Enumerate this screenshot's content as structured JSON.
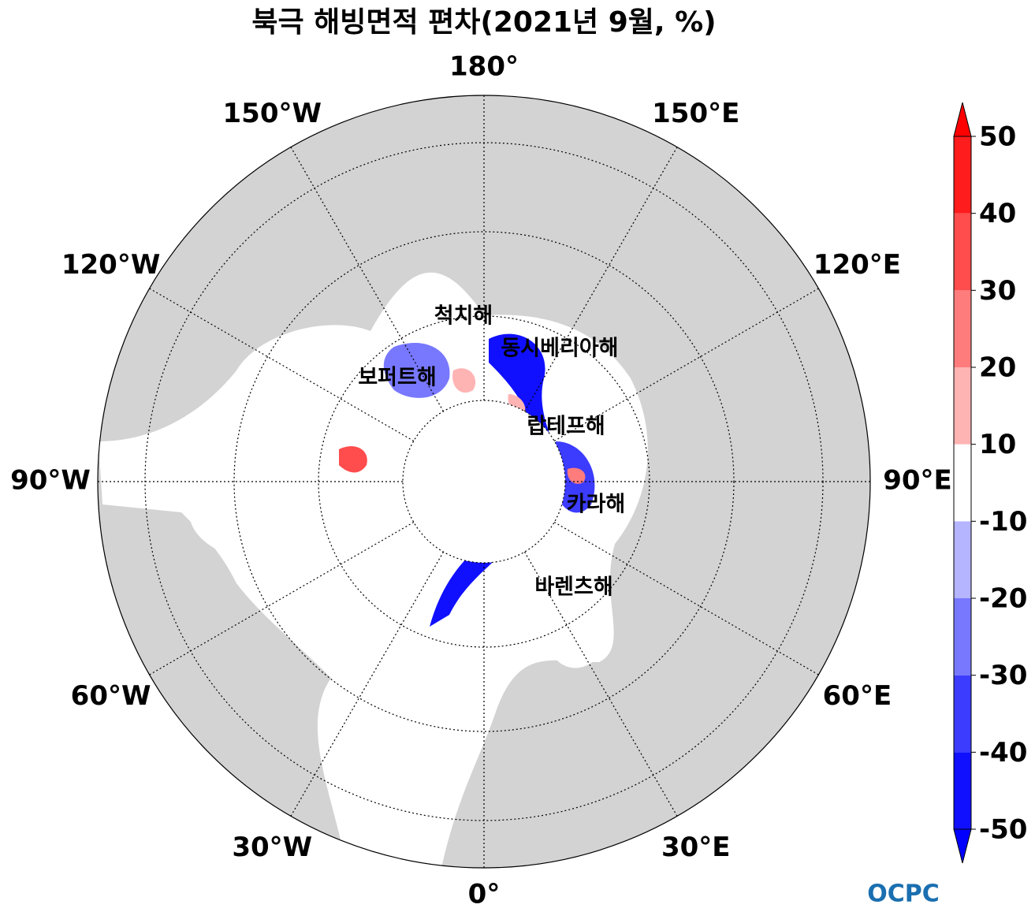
{
  "title": "북극 해빙면적 편차(2021년 9월, %)",
  "map": {
    "longitude_labels": [
      "0°",
      "30°E",
      "60°E",
      "90°E",
      "120°E",
      "150°E",
      "180°",
      "150°W",
      "120°W",
      "90°W",
      "60°W",
      "30°W"
    ],
    "sea_labels": [
      "척치해",
      "동시베리아해",
      "보퍼트해",
      "랍테프해",
      "카라해",
      "바렌츠해"
    ]
  },
  "colorbar": {
    "ticks": [
      -50,
      -40,
      -30,
      -20,
      -10,
      10,
      20,
      30,
      40,
      50
    ],
    "colors": [
      "#1010ff",
      "#3c3cff",
      "#7878ff",
      "#b4b4ff",
      "#ffffff",
      "#ffb4b4",
      "#ff7c7c",
      "#ff4c4c",
      "#ff1c1c"
    ],
    "under_color": "#0000ff",
    "over_color": "#ff0000"
  },
  "logo": "OCPC"
}
